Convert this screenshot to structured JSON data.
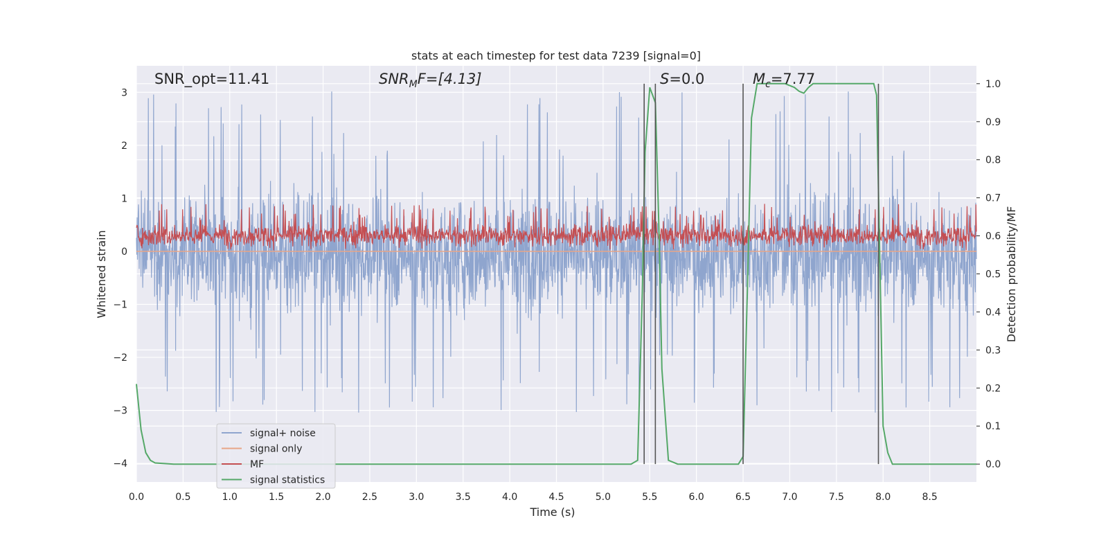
{
  "chart_data": {
    "type": "line",
    "title": "stats at each timestep for test data 7239 [signal=0]",
    "xlabel": "Time (s)",
    "ylabel_left": "Whitened strain",
    "ylabel_right": "Detection probability/MF",
    "xlim": [
      0.0,
      9.0
    ],
    "ylim_left": [
      -4.35,
      3.5
    ],
    "ylim_right": [
      -0.047,
      1.047
    ],
    "x_ticks": [
      "0.0",
      "0.5",
      "1.0",
      "1.5",
      "2.0",
      "2.5",
      "3.0",
      "3.5",
      "4.0",
      "4.5",
      "5.0",
      "5.5",
      "6.0",
      "6.5",
      "7.0",
      "7.5",
      "8.0",
      "8.5"
    ],
    "y_ticks_left": [
      "−4",
      "−3",
      "−2",
      "−1",
      "0",
      "1",
      "2",
      "3"
    ],
    "y_ticks_right": [
      "0.0",
      "0.1",
      "0.2",
      "0.3",
      "0.4",
      "0.5",
      "0.6",
      "0.7",
      "0.8",
      "0.9",
      "1.0"
    ],
    "grid": true,
    "legend_position": "lower-left",
    "annotations": {
      "snr_opt": "SNR_opt=11.41",
      "snr_mf_prefix": "SNR",
      "snr_mf_sub": "M",
      "snr_mf_suffix": "F=[4.13]",
      "s_prefix": "S",
      "s_suffix": "=0.0",
      "mc_prefix": "M",
      "mc_sub": "c",
      "mc_suffix": "=7.77"
    },
    "series": [
      {
        "name": "signal+ noise",
        "color": "#8fa5ce",
        "description_values": "noise band roughly within [-2, 1.8] with spikes to ±3"
      },
      {
        "name": "signal only",
        "color": "#e8a587",
        "values_constant": 0.0
      },
      {
        "name": "MF",
        "color": "#c44e52",
        "range": [
          0.0,
          0.9
        ]
      },
      {
        "name": "signal statistics",
        "color": "#55a868",
        "axis": "right",
        "points": [
          [
            0.0,
            0.21
          ],
          [
            0.05,
            0.09
          ],
          [
            0.1,
            0.03
          ],
          [
            0.15,
            0.01
          ],
          [
            0.2,
            0.003
          ],
          [
            0.4,
            0.0
          ],
          [
            1.0,
            0.0
          ],
          [
            2.0,
            0.0
          ],
          [
            3.0,
            0.0
          ],
          [
            4.0,
            0.0
          ],
          [
            5.0,
            0.0
          ],
          [
            5.3,
            0.0
          ],
          [
            5.37,
            0.01
          ],
          [
            5.42,
            0.45
          ],
          [
            5.45,
            0.82
          ],
          [
            5.5,
            0.99
          ],
          [
            5.56,
            0.95
          ],
          [
            5.6,
            0.6
          ],
          [
            5.63,
            0.25
          ],
          [
            5.7,
            0.01
          ],
          [
            5.8,
            0.0
          ],
          [
            6.0,
            0.0
          ],
          [
            6.45,
            0.0
          ],
          [
            6.5,
            0.02
          ],
          [
            6.55,
            0.5
          ],
          [
            6.59,
            0.91
          ],
          [
            6.65,
            1.0
          ],
          [
            6.8,
            1.0
          ],
          [
            6.95,
            1.0
          ],
          [
            7.05,
            0.99
          ],
          [
            7.1,
            0.98
          ],
          [
            7.15,
            0.975
          ],
          [
            7.2,
            0.99
          ],
          [
            7.25,
            1.0
          ],
          [
            7.5,
            1.0
          ],
          [
            7.9,
            1.0
          ],
          [
            7.93,
            0.97
          ],
          [
            7.96,
            0.6
          ],
          [
            8.0,
            0.1
          ],
          [
            8.05,
            0.03
          ],
          [
            8.1,
            0.0
          ],
          [
            8.5,
            0.0
          ],
          [
            9.0,
            0.0
          ]
        ]
      }
    ],
    "vertical_lines_x": [
      5.44,
      5.56,
      6.5,
      7.95
    ],
    "colors": {
      "background": "#eaeaf2",
      "grid": "#ffffff",
      "vline": "#555555"
    }
  }
}
